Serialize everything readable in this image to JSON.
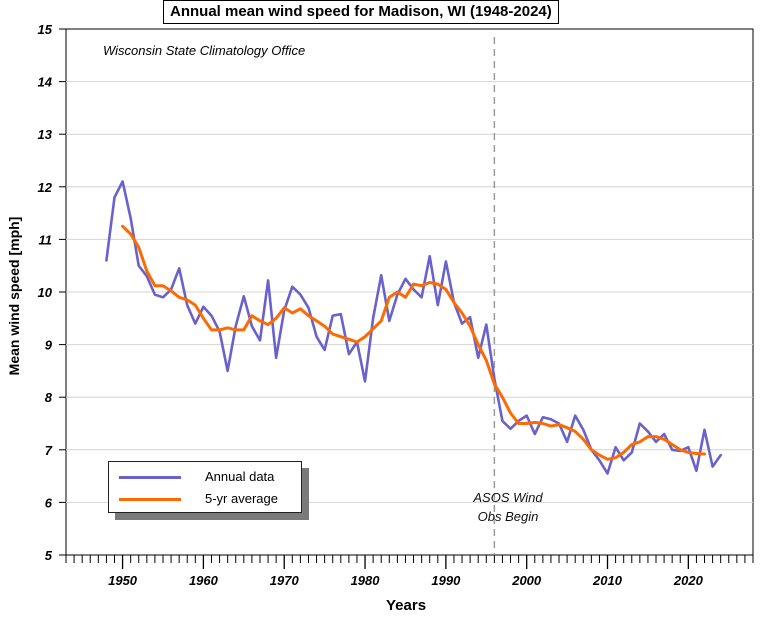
{
  "chart_data": {
    "type": "line",
    "title": "Annual mean wind speed for Madison, WI (1948-2024)",
    "xlabel": "Years",
    "ylabel": "Mean wind speed [mph]",
    "xlim": [
      1943,
      2028
    ],
    "ylim": [
      5,
      15
    ],
    "xticks": [
      1950,
      1960,
      1970,
      1980,
      1990,
      2000,
      2010,
      2020
    ],
    "yticks": [
      5,
      6,
      7,
      8,
      9,
      10,
      11,
      12,
      13,
      14,
      15
    ],
    "grid": "horizontal",
    "legend_position": "bottom-left",
    "annotations": {
      "source": "Wisconsin State Climatology Office",
      "asos_line1": "ASOS Wind",
      "asos_line2": "Obs Begin",
      "asos_year": 1996
    },
    "series": [
      {
        "name": "Annual data",
        "color": "#6a62cc",
        "x": [
          1948,
          1949,
          1950,
          1951,
          1952,
          1953,
          1954,
          1955,
          1956,
          1957,
          1958,
          1959,
          1960,
          1961,
          1962,
          1963,
          1964,
          1965,
          1966,
          1967,
          1968,
          1969,
          1970,
          1971,
          1972,
          1973,
          1974,
          1975,
          1976,
          1977,
          1978,
          1979,
          1980,
          1981,
          1982,
          1983,
          1984,
          1985,
          1986,
          1987,
          1988,
          1989,
          1990,
          1991,
          1992,
          1993,
          1994,
          1995,
          1996,
          1997,
          1998,
          1999,
          2000,
          2001,
          2002,
          2003,
          2004,
          2005,
          2006,
          2007,
          2008,
          2009,
          2010,
          2011,
          2012,
          2013,
          2014,
          2015,
          2016,
          2017,
          2018,
          2019,
          2020,
          2021,
          2022,
          2023,
          2024
        ],
        "values": [
          10.6,
          11.8,
          12.1,
          11.4,
          10.5,
          10.3,
          9.95,
          9.9,
          10.05,
          10.45,
          9.75,
          9.4,
          9.72,
          9.55,
          9.25,
          8.5,
          9.35,
          9.92,
          9.35,
          9.08,
          10.22,
          8.75,
          9.65,
          10.1,
          9.95,
          9.7,
          9.15,
          8.9,
          9.55,
          9.58,
          8.82,
          9.05,
          8.3,
          9.5,
          10.32,
          9.45,
          9.95,
          10.25,
          10.05,
          9.9,
          10.68,
          9.75,
          10.58,
          9.8,
          9.4,
          9.52,
          8.75,
          9.38,
          8.35,
          7.55,
          7.4,
          7.55,
          7.65,
          7.3,
          7.62,
          7.58,
          7.5,
          7.15,
          7.65,
          7.38,
          7.0,
          6.8,
          6.55,
          7.05,
          6.8,
          6.95,
          7.5,
          7.35,
          7.15,
          7.3,
          7.0,
          6.98,
          7.05,
          6.6,
          7.38,
          6.68,
          6.9
        ]
      },
      {
        "name": "5-yr average",
        "color": "#ff6a00",
        "x": [
          1950,
          1951,
          1952,
          1953,
          1954,
          1955,
          1956,
          1957,
          1958,
          1959,
          1960,
          1961,
          1962,
          1963,
          1964,
          1965,
          1966,
          1967,
          1968,
          1969,
          1970,
          1971,
          1972,
          1973,
          1974,
          1975,
          1976,
          1977,
          1978,
          1979,
          1980,
          1981,
          1982,
          1983,
          1984,
          1985,
          1986,
          1987,
          1988,
          1989,
          1990,
          1991,
          1992,
          1993,
          1994,
          1995,
          1996,
          1997,
          1998,
          1999,
          2000,
          2001,
          2002,
          2003,
          2004,
          2005,
          2006,
          2007,
          2008,
          2009,
          2010,
          2011,
          2012,
          2013,
          2014,
          2015,
          2016,
          2017,
          2018,
          2019,
          2020,
          2021,
          2022
        ],
        "values": [
          11.25,
          11.1,
          10.85,
          10.4,
          10.12,
          10.12,
          10.02,
          9.9,
          9.85,
          9.75,
          9.5,
          9.28,
          9.28,
          9.32,
          9.28,
          9.28,
          9.55,
          9.45,
          9.38,
          9.5,
          9.7,
          9.6,
          9.68,
          9.55,
          9.45,
          9.35,
          9.2,
          9.15,
          9.1,
          9.05,
          9.15,
          9.3,
          9.45,
          9.9,
          10.0,
          9.9,
          10.15,
          10.12,
          10.18,
          10.15,
          10.05,
          9.8,
          9.6,
          9.35,
          9.0,
          8.7,
          8.25,
          8.0,
          7.7,
          7.5,
          7.5,
          7.52,
          7.5,
          7.45,
          7.48,
          7.42,
          7.35,
          7.2,
          7.0,
          6.9,
          6.82,
          6.85,
          6.95,
          7.1,
          7.15,
          7.25,
          7.25,
          7.2,
          7.1,
          7.0,
          6.95,
          6.93,
          6.92
        ]
      }
    ]
  }
}
